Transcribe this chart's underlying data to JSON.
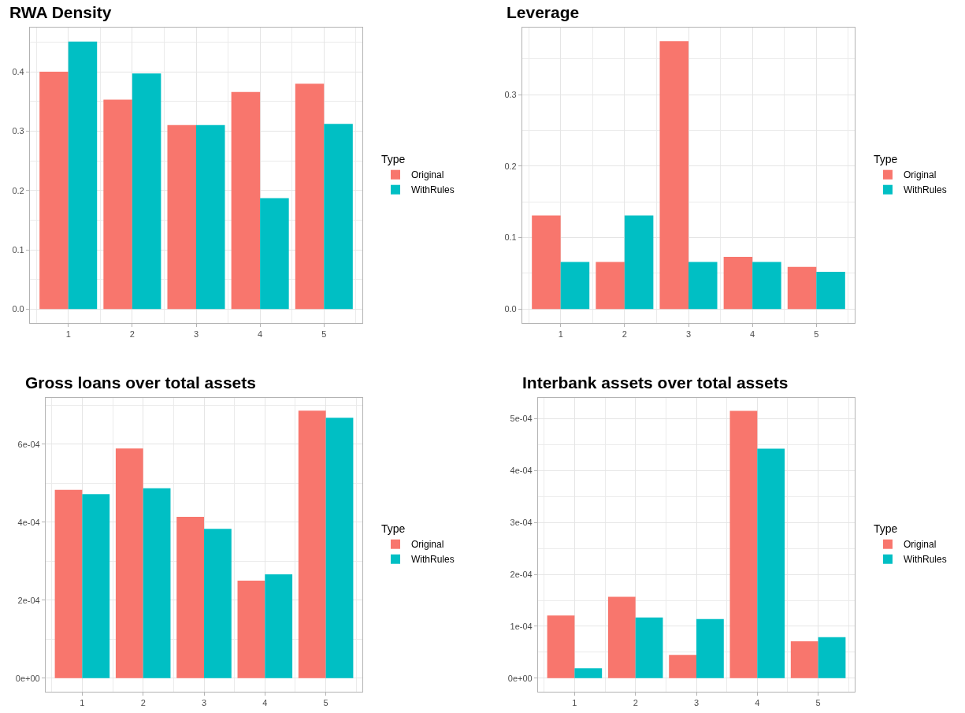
{
  "chart_data": [
    {
      "type": "bar",
      "title": "RWA Density",
      "legend_title": "Type",
      "legend": "right",
      "grid": true,
      "categories": [
        "1",
        "2",
        "3",
        "4",
        "5"
      ],
      "series": [
        {
          "name": "Original",
          "color": "#f8766d",
          "values": [
            0.4,
            0.353,
            0.31,
            0.366,
            0.38
          ]
        },
        {
          "name": "WithRules",
          "color": "#00bfc4",
          "values": [
            0.451,
            0.397,
            0.31,
            0.187,
            0.312
          ]
        }
      ],
      "ylim": [
        -0.0235,
        0.4745
      ],
      "yticks": [
        {
          "value": 0,
          "label": "0.0"
        },
        0.1,
        0.2,
        0.3,
        0.4
      ]
    },
    {
      "type": "bar",
      "title": "Leverage",
      "legend_title": "Type",
      "legend": "right",
      "grid": true,
      "categories": [
        "1",
        "2",
        "3",
        "4",
        "5"
      ],
      "series": [
        {
          "name": "Original",
          "color": "#f8766d",
          "values": [
            0.131,
            0.066,
            0.375,
            0.073,
            0.059
          ]
        },
        {
          "name": "WithRules",
          "color": "#00bfc4",
          "values": [
            0.066,
            0.131,
            0.066,
            0.066,
            0.052
          ]
        }
      ],
      "ylim": [
        -0.0196,
        0.394
      ],
      "yticks": [
        {
          "value": 0,
          "label": "0.0"
        },
        0.1,
        0.2,
        0.3
      ]
    },
    {
      "type": "bar",
      "title": "Gross loans over total assets",
      "legend_title": "Type",
      "legend": "right",
      "grid": true,
      "categories": [
        "1",
        "2",
        "3",
        "4",
        "5"
      ],
      "series": [
        {
          "name": "Original",
          "color": "#f8766d",
          "values": [
            0.000483,
            0.000589,
            0.000414,
            0.00025,
            0.000686
          ]
        },
        {
          "name": "WithRules",
          "color": "#00bfc4",
          "values": [
            0.000472,
            0.000487,
            0.000383,
            0.000266,
            0.000668
          ]
        }
      ],
      "ylim": [
        -3.5e-05,
        0.000719
      ],
      "yticks": [
        {
          "value": 0,
          "label": "0e+00"
        },
        {
          "value": 0.0002,
          "label": "2e-04"
        },
        {
          "value": 0.0004,
          "label": "4e-04"
        },
        {
          "value": 0.0006,
          "label": "6e-04"
        }
      ]
    },
    {
      "type": "bar",
      "title": "Interbank assets over total assets",
      "legend_title": "Type",
      "legend": "right",
      "grid": true,
      "categories": [
        "1",
        "2",
        "3",
        "4",
        "5"
      ],
      "series": [
        {
          "name": "Original",
          "color": "#f8766d",
          "values": [
            0.000121,
            0.000157,
            4.5e-05,
            0.000515,
            7.1e-05
          ]
        },
        {
          "name": "WithRules",
          "color": "#00bfc4",
          "values": [
            1.9e-05,
            0.000117,
            0.000114,
            0.000442,
            7.9e-05
          ]
        }
      ],
      "ylim": [
        -2.6e-05,
        0.00054
      ],
      "yticks": [
        {
          "value": 0,
          "label": "0e+00"
        },
        {
          "value": 0.0001,
          "label": "1e-04"
        },
        {
          "value": 0.0002,
          "label": "2e-04"
        },
        {
          "value": 0.0003,
          "label": "3e-04"
        },
        {
          "value": 0.0004,
          "label": "4e-04"
        },
        {
          "value": 0.0005,
          "label": "5e-04"
        }
      ]
    }
  ]
}
